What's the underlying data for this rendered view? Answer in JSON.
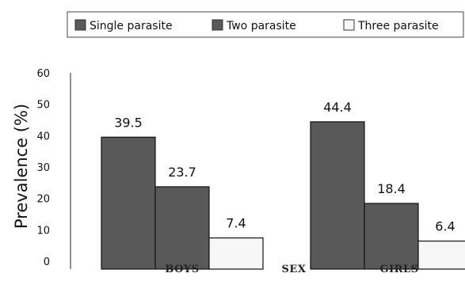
{
  "chart_data": {
    "type": "bar",
    "categories": [
      "BOYS",
      "GIRLS"
    ],
    "xlabel": "SEX",
    "ylabel": "Prevalence (%)",
    "ylim": [
      0,
      60
    ],
    "yticks": [
      0,
      10,
      20,
      30,
      40,
      50,
      60
    ],
    "legend_position": "top",
    "series": [
      {
        "name": "Single parasite",
        "values": [
          39.5,
          44.4
        ],
        "color": "#595959"
      },
      {
        "name": "Two parasite",
        "values": [
          23.7,
          18.4
        ],
        "color": "#595959"
      },
      {
        "name": "Three parasite",
        "values": [
          7.4,
          6.4
        ],
        "color": "#f7f7f7"
      }
    ]
  }
}
